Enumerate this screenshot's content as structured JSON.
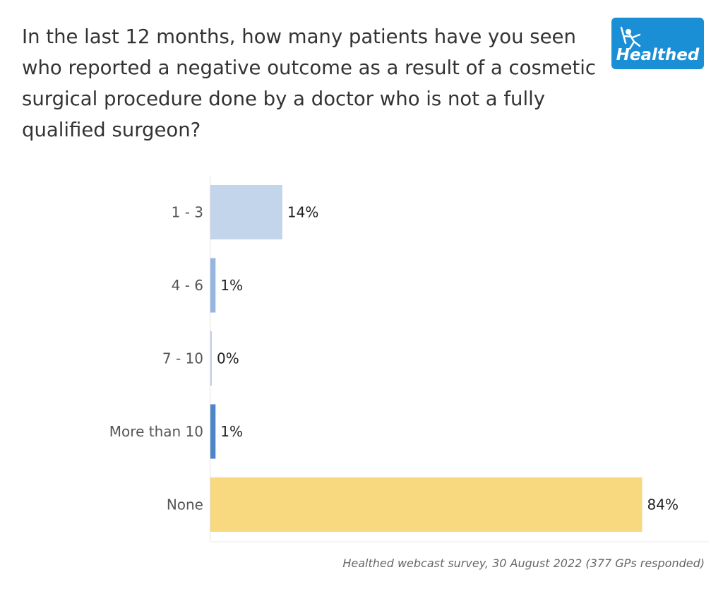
{
  "title": "In the last 12 months, how many patients have you seen who reported a negative outcome as a result of a cosmetic surgical procedure done by a doctor who is not a fully qualified surgeon?",
  "logo": {
    "text": "Healthed",
    "icon": "hermes-figure-icon",
    "color": "#1a8fd6"
  },
  "source": "Healthed webcast survey, 30 August 2022 (377 GPs responded)",
  "chart_data": {
    "type": "bar",
    "orientation": "horizontal",
    "title": "In the last 12 months, how many patients have you seen who reported a negative outcome as a result of a cosmetic surgical procedure done by a doctor who is not a fully qualified surgeon?",
    "categories": [
      "1 - 3",
      "4 - 6",
      "7 - 10",
      "More than 10",
      "None"
    ],
    "values": [
      14,
      1,
      0,
      1,
      84
    ],
    "value_labels": [
      "14%",
      "1%",
      "0%",
      "1%",
      "84%"
    ],
    "unit": "%",
    "colors": [
      "#c3d5eb",
      "#94b6e0",
      "#bcd3ef",
      "#4a86c8",
      "#f8d97f"
    ],
    "xlim": [
      0,
      100
    ],
    "xlabel": "",
    "ylabel": "",
    "grid": false,
    "legend": "none"
  }
}
